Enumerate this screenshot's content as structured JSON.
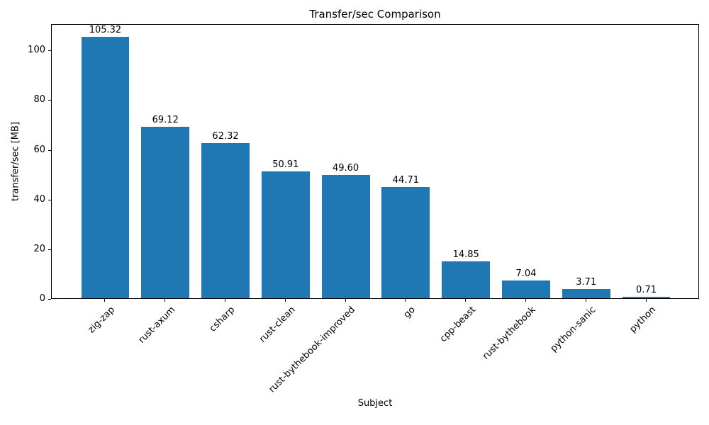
{
  "chart_data": {
    "type": "bar",
    "title": "Transfer/sec Comparison",
    "xlabel": "Subject",
    "ylabel": "transfer/sec [MB]",
    "categories": [
      "zig-zap",
      "rust-axum",
      "csharp",
      "rust-clean",
      "rust-bythebook-improved",
      "go",
      "cpp-beast",
      "rust-bythebook",
      "python-sanic",
      "python"
    ],
    "values": [
      105.32,
      69.12,
      62.32,
      50.91,
      49.6,
      44.71,
      14.85,
      7.04,
      3.71,
      0.71
    ],
    "value_labels": [
      "105.32",
      "69.12",
      "62.32",
      "50.91",
      "49.60",
      "44.71",
      "14.85",
      "7.04",
      "3.71",
      "0.71"
    ],
    "yticks": [
      0,
      20,
      40,
      60,
      80,
      100
    ],
    "ylim": [
      0,
      110.6
    ],
    "xlim": [
      -0.89,
      9.89
    ],
    "bar_width_ratio": 0.8,
    "bar_color": "#1f77b4",
    "frame_color": "#000000",
    "grid": false,
    "legend": "none",
    "x_tick_label_rotation_deg": 45
  }
}
